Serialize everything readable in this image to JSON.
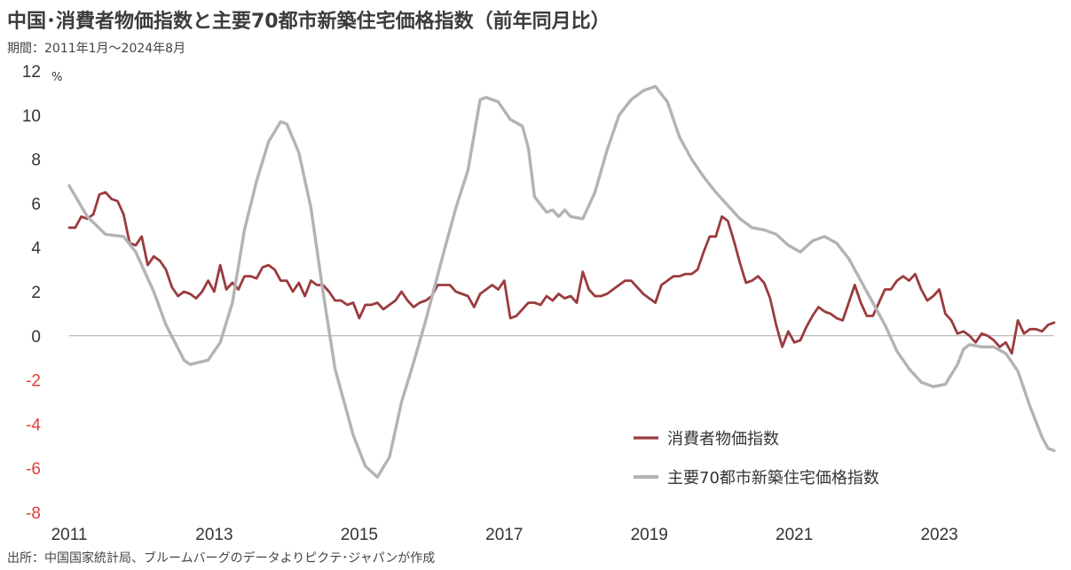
{
  "title": "中国･消費者物価指数と主要70都市新築住宅価格指数（前年同月比）",
  "subtitle": "期間：2011年1月～2024年8月",
  "source": "出所：中国国家統計局、ブルームバーグのデータよりピクテ･ジャパンが作成",
  "colors": {
    "cpi": "#9b3b3e",
    "housing": "#b3b3b3",
    "negative_tick": "#e0403a",
    "positive_tick": "#333333",
    "zero_line": "#aaaaaa"
  },
  "chart_data": {
    "type": "line",
    "y_unit": "%",
    "ylim": [
      -8,
      12
    ],
    "y_ticks": [
      "12",
      "10",
      "8",
      "6",
      "4",
      "2",
      "0",
      "-2",
      "-4",
      "-6",
      "-8"
    ],
    "x_ticks": [
      "2011",
      "2013",
      "2015",
      "2017",
      "2019",
      "2021",
      "2023"
    ],
    "x_range": [
      "2011-01",
      "2024-08"
    ],
    "legend_position": "bottom-right",
    "grid": false,
    "series": [
      {
        "name": "消費者物価指数",
        "key": "cpi",
        "points": [
          [
            "2011-01",
            4.9
          ],
          [
            "2011-02",
            4.9
          ],
          [
            "2011-03",
            5.4
          ],
          [
            "2011-04",
            5.3
          ],
          [
            "2011-05",
            5.5
          ],
          [
            "2011-06",
            6.4
          ],
          [
            "2011-07",
            6.5
          ],
          [
            "2011-08",
            6.2
          ],
          [
            "2011-09",
            6.1
          ],
          [
            "2011-10",
            5.5
          ],
          [
            "2011-11",
            4.2
          ],
          [
            "2011-12",
            4.1
          ],
          [
            "2012-01",
            4.5
          ],
          [
            "2012-02",
            3.2
          ],
          [
            "2012-03",
            3.6
          ],
          [
            "2012-04",
            3.4
          ],
          [
            "2012-05",
            3.0
          ],
          [
            "2012-06",
            2.2
          ],
          [
            "2012-07",
            1.8
          ],
          [
            "2012-08",
            2.0
          ],
          [
            "2012-09",
            1.9
          ],
          [
            "2012-10",
            1.7
          ],
          [
            "2012-11",
            2.0
          ],
          [
            "2012-12",
            2.5
          ],
          [
            "2013-01",
            2.0
          ],
          [
            "2013-02",
            3.2
          ],
          [
            "2013-03",
            2.1
          ],
          [
            "2013-04",
            2.4
          ],
          [
            "2013-05",
            2.1
          ],
          [
            "2013-06",
            2.7
          ],
          [
            "2013-07",
            2.7
          ],
          [
            "2013-08",
            2.6
          ],
          [
            "2013-09",
            3.1
          ],
          [
            "2013-10",
            3.2
          ],
          [
            "2013-11",
            3.0
          ],
          [
            "2013-12",
            2.5
          ],
          [
            "2014-01",
            2.5
          ],
          [
            "2014-02",
            2.0
          ],
          [
            "2014-03",
            2.4
          ],
          [
            "2014-04",
            1.8
          ],
          [
            "2014-05",
            2.5
          ],
          [
            "2014-06",
            2.3
          ],
          [
            "2014-07",
            2.3
          ],
          [
            "2014-08",
            2.0
          ],
          [
            "2014-09",
            1.6
          ],
          [
            "2014-10",
            1.6
          ],
          [
            "2014-11",
            1.4
          ],
          [
            "2014-12",
            1.5
          ],
          [
            "2015-01",
            0.8
          ],
          [
            "2015-02",
            1.4
          ],
          [
            "2015-03",
            1.4
          ],
          [
            "2015-04",
            1.5
          ],
          [
            "2015-05",
            1.2
          ],
          [
            "2015-06",
            1.4
          ],
          [
            "2015-07",
            1.6
          ],
          [
            "2015-08",
            2.0
          ],
          [
            "2015-09",
            1.6
          ],
          [
            "2015-10",
            1.3
          ],
          [
            "2015-11",
            1.5
          ],
          [
            "2015-12",
            1.6
          ],
          [
            "2016-01",
            1.8
          ],
          [
            "2016-02",
            2.3
          ],
          [
            "2016-03",
            2.3
          ],
          [
            "2016-04",
            2.3
          ],
          [
            "2016-05",
            2.0
          ],
          [
            "2016-06",
            1.9
          ],
          [
            "2016-07",
            1.8
          ],
          [
            "2016-08",
            1.3
          ],
          [
            "2016-09",
            1.9
          ],
          [
            "2016-10",
            2.1
          ],
          [
            "2016-11",
            2.3
          ],
          [
            "2016-12",
            2.1
          ],
          [
            "2017-01",
            2.5
          ],
          [
            "2017-02",
            0.8
          ],
          [
            "2017-03",
            0.9
          ],
          [
            "2017-04",
            1.2
          ],
          [
            "2017-05",
            1.5
          ],
          [
            "2017-06",
            1.5
          ],
          [
            "2017-07",
            1.4
          ],
          [
            "2017-08",
            1.8
          ],
          [
            "2017-09",
            1.6
          ],
          [
            "2017-10",
            1.9
          ],
          [
            "2017-11",
            1.7
          ],
          [
            "2017-12",
            1.8
          ],
          [
            "2018-01",
            1.5
          ],
          [
            "2018-02",
            2.9
          ],
          [
            "2018-03",
            2.1
          ],
          [
            "2018-04",
            1.8
          ],
          [
            "2018-05",
            1.8
          ],
          [
            "2018-06",
            1.9
          ],
          [
            "2018-07",
            2.1
          ],
          [
            "2018-08",
            2.3
          ],
          [
            "2018-09",
            2.5
          ],
          [
            "2018-10",
            2.5
          ],
          [
            "2018-11",
            2.2
          ],
          [
            "2018-12",
            1.9
          ],
          [
            "2019-01",
            1.7
          ],
          [
            "2019-02",
            1.5
          ],
          [
            "2019-03",
            2.3
          ],
          [
            "2019-04",
            2.5
          ],
          [
            "2019-05",
            2.7
          ],
          [
            "2019-06",
            2.7
          ],
          [
            "2019-07",
            2.8
          ],
          [
            "2019-08",
            2.8
          ],
          [
            "2019-09",
            3.0
          ],
          [
            "2019-10",
            3.8
          ],
          [
            "2019-11",
            4.5
          ],
          [
            "2019-12",
            4.5
          ],
          [
            "2020-01",
            5.4
          ],
          [
            "2020-02",
            5.2
          ],
          [
            "2020-03",
            4.3
          ],
          [
            "2020-04",
            3.3
          ],
          [
            "2020-05",
            2.4
          ],
          [
            "2020-06",
            2.5
          ],
          [
            "2020-07",
            2.7
          ],
          [
            "2020-08",
            2.4
          ],
          [
            "2020-09",
            1.7
          ],
          [
            "2020-10",
            0.5
          ],
          [
            "2020-11",
            -0.5
          ],
          [
            "2020-12",
            0.2
          ],
          [
            "2021-01",
            -0.3
          ],
          [
            "2021-02",
            -0.2
          ],
          [
            "2021-03",
            0.4
          ],
          [
            "2021-04",
            0.9
          ],
          [
            "2021-05",
            1.3
          ],
          [
            "2021-06",
            1.1
          ],
          [
            "2021-07",
            1.0
          ],
          [
            "2021-08",
            0.8
          ],
          [
            "2021-09",
            0.7
          ],
          [
            "2021-10",
            1.5
          ],
          [
            "2021-11",
            2.3
          ],
          [
            "2021-12",
            1.5
          ],
          [
            "2022-01",
            0.9
          ],
          [
            "2022-02",
            0.9
          ],
          [
            "2022-03",
            1.5
          ],
          [
            "2022-04",
            2.1
          ],
          [
            "2022-05",
            2.1
          ],
          [
            "2022-06",
            2.5
          ],
          [
            "2022-07",
            2.7
          ],
          [
            "2022-08",
            2.5
          ],
          [
            "2022-09",
            2.8
          ],
          [
            "2022-10",
            2.1
          ],
          [
            "2022-11",
            1.6
          ],
          [
            "2022-12",
            1.8
          ],
          [
            "2023-01",
            2.1
          ],
          [
            "2023-02",
            1.0
          ],
          [
            "2023-03",
            0.7
          ],
          [
            "2023-04",
            0.1
          ],
          [
            "2023-05",
            0.2
          ],
          [
            "2023-06",
            0.0
          ],
          [
            "2023-07",
            -0.3
          ],
          [
            "2023-08",
            0.1
          ],
          [
            "2023-09",
            0.0
          ],
          [
            "2023-10",
            -0.2
          ],
          [
            "2023-11",
            -0.5
          ],
          [
            "2023-12",
            -0.3
          ],
          [
            "2024-01",
            -0.8
          ],
          [
            "2024-02",
            0.7
          ],
          [
            "2024-03",
            0.1
          ],
          [
            "2024-04",
            0.3
          ],
          [
            "2024-05",
            0.3
          ],
          [
            "2024-06",
            0.2
          ],
          [
            "2024-07",
            0.5
          ],
          [
            "2024-08",
            0.6
          ]
        ]
      },
      {
        "name": "主要70都市新築住宅価格指数",
        "key": "housing",
        "points": [
          [
            "2011-01",
            6.8
          ],
          [
            "2011-04",
            5.4
          ],
          [
            "2011-07",
            4.6
          ],
          [
            "2011-10",
            4.5
          ],
          [
            "2011-12",
            3.8
          ],
          [
            "2012-03",
            2.0
          ],
          [
            "2012-05",
            0.5
          ],
          [
            "2012-08",
            -1.1
          ],
          [
            "2012-09",
            -1.3
          ],
          [
            "2012-12",
            -1.1
          ],
          [
            "2013-02",
            -0.3
          ],
          [
            "2013-04",
            1.5
          ],
          [
            "2013-06",
            4.8
          ],
          [
            "2013-08",
            7.0
          ],
          [
            "2013-10",
            8.8
          ],
          [
            "2013-12",
            9.7
          ],
          [
            "2014-01",
            9.6
          ],
          [
            "2014-03",
            8.3
          ],
          [
            "2014-05",
            5.8
          ],
          [
            "2014-07",
            2.0
          ],
          [
            "2014-09",
            -1.5
          ],
          [
            "2014-12",
            -4.5
          ],
          [
            "2015-02",
            -5.9
          ],
          [
            "2015-04",
            -6.4
          ],
          [
            "2015-06",
            -5.5
          ],
          [
            "2015-08",
            -3.0
          ],
          [
            "2015-10",
            -1.2
          ],
          [
            "2015-12",
            0.7
          ],
          [
            "2016-03",
            3.8
          ],
          [
            "2016-05",
            5.8
          ],
          [
            "2016-07",
            7.5
          ],
          [
            "2016-09",
            10.7
          ],
          [
            "2016-10",
            10.8
          ],
          [
            "2016-12",
            10.6
          ],
          [
            "2017-02",
            9.8
          ],
          [
            "2017-04",
            9.5
          ],
          [
            "2017-05",
            8.5
          ],
          [
            "2017-06",
            6.3
          ],
          [
            "2017-08",
            5.6
          ],
          [
            "2017-09",
            5.7
          ],
          [
            "2017-10",
            5.4
          ],
          [
            "2017-11",
            5.7
          ],
          [
            "2017-12",
            5.4
          ],
          [
            "2018-02",
            5.3
          ],
          [
            "2018-04",
            6.5
          ],
          [
            "2018-06",
            8.4
          ],
          [
            "2018-08",
            10.0
          ],
          [
            "2018-10",
            10.7
          ],
          [
            "2018-12",
            11.1
          ],
          [
            "2019-02",
            11.3
          ],
          [
            "2019-04",
            10.6
          ],
          [
            "2019-06",
            9.0
          ],
          [
            "2019-08",
            8.0
          ],
          [
            "2019-10",
            7.2
          ],
          [
            "2019-12",
            6.5
          ],
          [
            "2020-02",
            5.9
          ],
          [
            "2020-04",
            5.3
          ],
          [
            "2020-06",
            4.9
          ],
          [
            "2020-08",
            4.8
          ],
          [
            "2020-10",
            4.6
          ],
          [
            "2020-12",
            4.1
          ],
          [
            "2021-02",
            3.8
          ],
          [
            "2021-04",
            4.3
          ],
          [
            "2021-06",
            4.5
          ],
          [
            "2021-08",
            4.2
          ],
          [
            "2021-10",
            3.5
          ],
          [
            "2021-12",
            2.5
          ],
          [
            "2022-02",
            1.5
          ],
          [
            "2022-04",
            0.5
          ],
          [
            "2022-06",
            -0.7
          ],
          [
            "2022-08",
            -1.5
          ],
          [
            "2022-10",
            -2.1
          ],
          [
            "2022-12",
            -2.3
          ],
          [
            "2023-02",
            -2.2
          ],
          [
            "2023-04",
            -1.3
          ],
          [
            "2023-05",
            -0.6
          ],
          [
            "2023-06",
            -0.4
          ],
          [
            "2023-08",
            -0.5
          ],
          [
            "2023-10",
            -0.5
          ],
          [
            "2023-12",
            -0.8
          ],
          [
            "2024-02",
            -1.6
          ],
          [
            "2024-04",
            -3.2
          ],
          [
            "2024-06",
            -4.6
          ],
          [
            "2024-07",
            -5.1
          ],
          [
            "2024-08",
            -5.2
          ]
        ]
      }
    ]
  }
}
